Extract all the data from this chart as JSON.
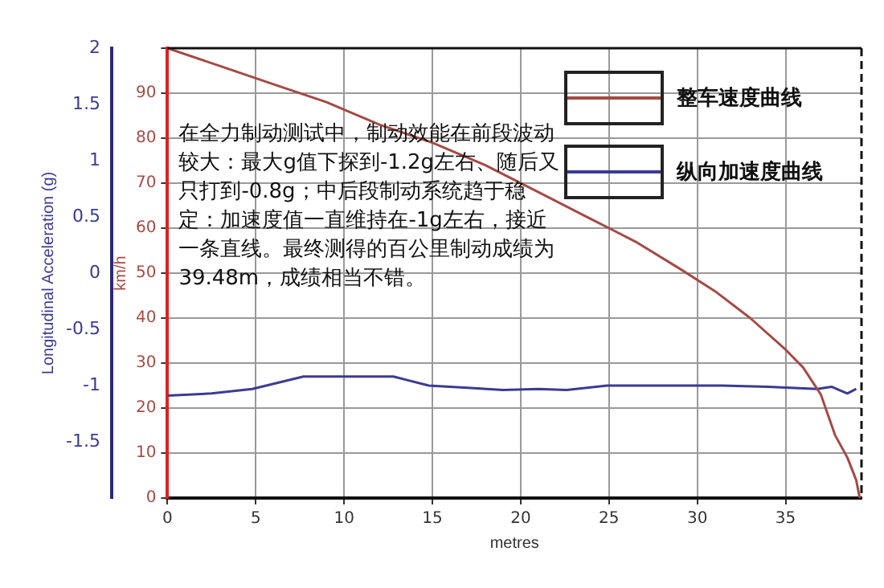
{
  "chart_data": {
    "type": "line",
    "xlabel": "metres",
    "ylabel": "km/h",
    "y2label": "Longitudinal Acceleration (g)",
    "xlim": [
      0,
      39.3
    ],
    "xticks": [
      0,
      5,
      10,
      15,
      20,
      25,
      30,
      35
    ],
    "ylim": [
      0,
      100
    ],
    "yticks": [
      0,
      10,
      20,
      30,
      40,
      50,
      60,
      70,
      80,
      90,
      {
        "value": 100,
        "label": null
      }
    ],
    "y2lim": [
      -2,
      2
    ],
    "y2ticks": [
      -1.5,
      -1,
      -0.5,
      0,
      0.5,
      1,
      1.5,
      2
    ],
    "grid": true,
    "legend": "top right",
    "marker": "none",
    "annotations": [
      "在全力制动测试中，制动效能在前段波动较大：最大g值下探到-1.2g左右、随后又只打到-0.8g；中后段制动系统趋于稳定：加速度值一直维持在-1g左右，接近一条直线。最终测得的百公里制动成绩为39.48m，成绩相当不错。"
    ],
    "series": [
      {
        "name": "整车速度曲线",
        "type": "line",
        "color": "#a54a44",
        "x": [
          0,
          3,
          6,
          9,
          12,
          15,
          18,
          21,
          24,
          26.5,
          29,
          31,
          33,
          35,
          36,
          37,
          37.8,
          38.5,
          39,
          39.2
        ],
        "values": [
          100,
          96,
          92,
          88,
          83,
          79,
          74,
          68,
          62,
          57,
          51,
          46,
          40,
          33,
          29,
          23,
          14,
          9,
          4,
          0
        ]
      },
      {
        "name": "纵向加速度曲线",
        "type": "line",
        "axis": "y2",
        "color": "#3b3b92",
        "x": [
          0,
          2.5,
          4.8,
          7.7,
          10,
          12.8,
          14.8,
          17,
          19,
          21,
          22.6,
          24.9,
          28,
          31.4,
          34,
          36.8,
          37.6,
          38.5,
          39
        ],
        "values": [
          -1.09,
          -1.07,
          -1.03,
          -0.92,
          -0.92,
          -0.92,
          -1.0,
          -1.02,
          -1.04,
          -1.03,
          -1.04,
          -1.0,
          -1.0,
          -1.0,
          -1.01,
          -1.03,
          -1.01,
          -1.07,
          -1.03
        ]
      }
    ]
  }
}
